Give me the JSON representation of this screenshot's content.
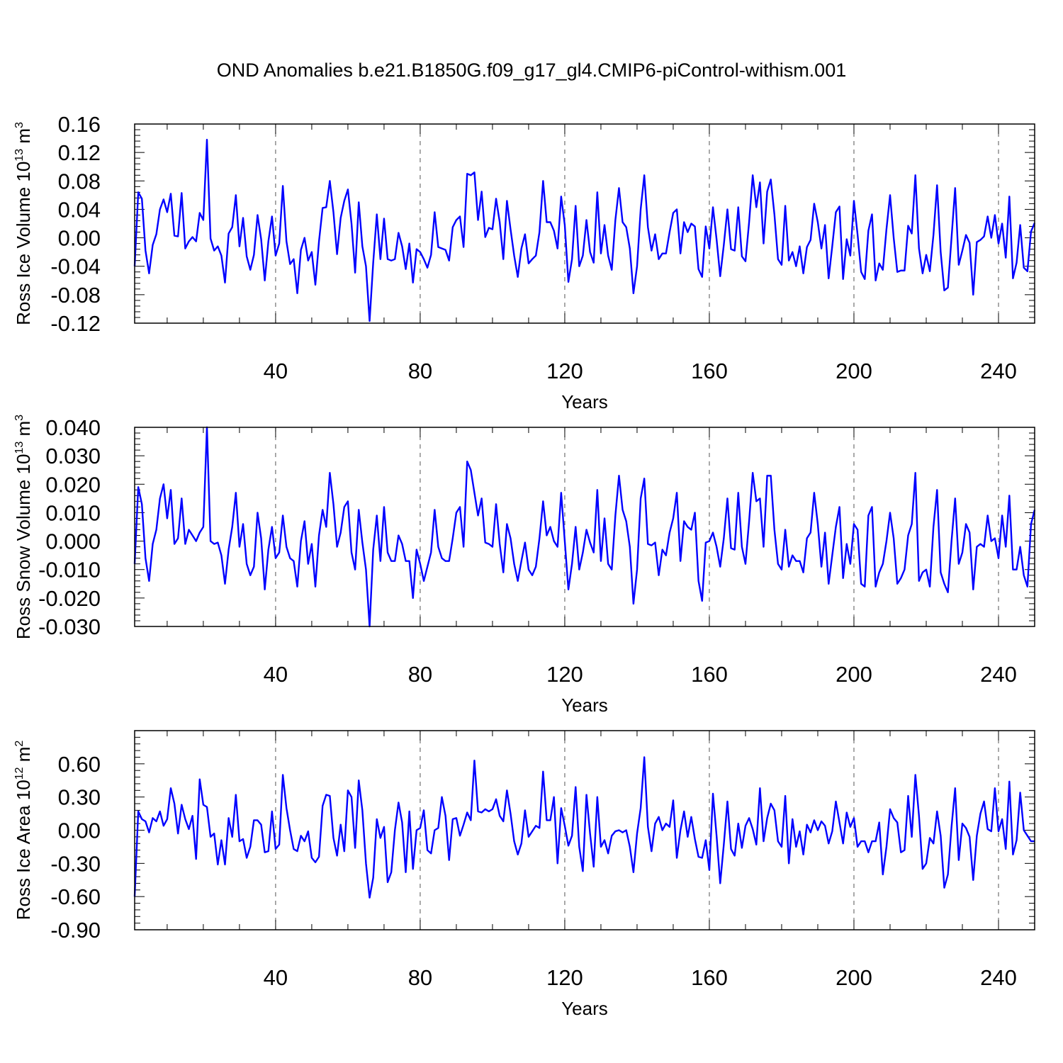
{
  "title": "OND Anomalies b.e21.B1850G.f09_g17_gl4.CMIP6-piControl-withism.001",
  "colors": {
    "line": "#0000ff",
    "axis": "#000000",
    "grid": "#555555"
  },
  "chart_data": [
    {
      "type": "line",
      "xlabel": "Years",
      "ylabel": "Ross Ice Volume 10",
      "ylabel_exp": "13",
      "ylabel_unit": "m",
      "ylabel_unit_exp": "3",
      "xlim": [
        1,
        250
      ],
      "ylim": [
        -0.12,
        0.16
      ],
      "x_ticks": [
        40,
        80,
        120,
        160,
        200,
        240
      ],
      "x_tick_labels": [
        "40",
        "80",
        "120",
        "160",
        "200",
        "240"
      ],
      "y_ticks": [
        -0.12,
        -0.08,
        -0.04,
        0.0,
        0.04,
        0.08,
        0.12,
        0.16
      ],
      "y_tick_labels": [
        "-0.12",
        "-0.08",
        "-0.04",
        "0.00",
        "0.04",
        "0.08",
        "0.12",
        "0.16"
      ],
      "series": [
        {
          "name": "Ross Ice Volume",
          "x_start": 1,
          "values": [
            -0.04,
            0.064,
            0.055,
            -0.018,
            -0.05,
            -0.01,
            0.005,
            0.04,
            0.054,
            0.036,
            0.062,
            0.003,
            0.002,
            0.063,
            -0.015,
            -0.005,
            0.001,
            -0.005,
            0.035,
            0.025,
            0.138,
            -0.001,
            -0.018,
            -0.012,
            -0.025,
            -0.063,
            0.006,
            0.015,
            0.06,
            -0.012,
            0.028,
            -0.026,
            -0.045,
            -0.024,
            0.032,
            -0.002,
            -0.06,
            -0.005,
            0.03,
            -0.025,
            -0.008,
            0.073,
            -0.005,
            -0.037,
            -0.03,
            -0.078,
            -0.017,
            0.0,
            -0.032,
            -0.02,
            -0.066,
            -0.005,
            0.042,
            0.043,
            0.08,
            0.036,
            -0.023,
            0.028,
            0.052,
            0.068,
            0.02,
            -0.049,
            0.05,
            -0.012,
            -0.04,
            -0.117,
            -0.035,
            0.033,
            -0.03,
            0.027,
            -0.03,
            -0.032,
            -0.03,
            0.007,
            -0.012,
            -0.044,
            -0.008,
            -0.063,
            -0.016,
            -0.02,
            -0.03,
            -0.042,
            -0.024,
            0.036,
            -0.013,
            -0.015,
            -0.017,
            -0.032,
            0.015,
            0.025,
            0.03,
            -0.013,
            0.09,
            0.088,
            0.092,
            0.025,
            0.065,
            0.001,
            0.014,
            0.012,
            0.055,
            0.022,
            -0.03,
            0.052,
            0.012,
            -0.025,
            -0.055,
            -0.015,
            0.005,
            -0.036,
            -0.03,
            -0.025,
            0.008,
            0.08,
            0.022,
            0.022,
            0.01,
            -0.015,
            0.058,
            0.018,
            -0.062,
            -0.03,
            0.045,
            -0.04,
            -0.025,
            0.025,
            -0.02,
            -0.035,
            0.064,
            -0.022,
            0.018,
            -0.025,
            -0.045,
            0.025,
            0.07,
            0.022,
            0.015,
            -0.015,
            -0.078,
            -0.04,
            0.04,
            0.088,
            0.015,
            -0.018,
            0.005,
            -0.03,
            -0.022,
            -0.022,
            0.008,
            0.035,
            0.04,
            -0.022,
            0.022,
            0.008,
            0.02,
            0.016,
            -0.044,
            -0.055,
            0.016,
            -0.015,
            0.043,
            -0.002,
            -0.054,
            -0.01,
            0.04,
            -0.016,
            -0.018,
            0.043,
            -0.026,
            -0.033,
            0.022,
            0.088,
            0.043,
            0.078,
            -0.008,
            0.065,
            0.082,
            0.033,
            -0.03,
            -0.038,
            0.045,
            -0.032,
            -0.02,
            -0.04,
            -0.012,
            -0.05,
            -0.013,
            -0.003,
            0.048,
            0.022,
            -0.015,
            0.018,
            -0.057,
            -0.012,
            0.036,
            0.044,
            -0.058,
            -0.002,
            -0.025,
            0.052,
            0.005,
            -0.048,
            -0.058,
            0.01,
            0.033,
            -0.06,
            -0.036,
            -0.045,
            0.012,
            0.06,
            0.0,
            -0.048,
            -0.046,
            -0.046,
            0.017,
            0.006,
            0.088,
            -0.015,
            -0.05,
            -0.024,
            -0.047,
            0.004,
            0.074,
            -0.02,
            -0.074,
            -0.07,
            0.0,
            0.07,
            -0.038,
            -0.018,
            0.004,
            -0.007,
            -0.08,
            -0.006,
            -0.003,
            0.002,
            0.03,
            0.0,
            0.032,
            -0.008,
            0.02,
            -0.028,
            0.058,
            -0.057,
            -0.035,
            0.018,
            -0.042,
            -0.047,
            0.009,
            0.021
          ]
        }
      ]
    },
    {
      "type": "line",
      "xlabel": "Years",
      "ylabel": "Ross Snow Volume 10",
      "ylabel_exp": "13",
      "ylabel_unit": "m",
      "ylabel_unit_exp": "3",
      "xlim": [
        1,
        250
      ],
      "ylim": [
        -0.03,
        0.04
      ],
      "x_ticks": [
        40,
        80,
        120,
        160,
        200,
        240
      ],
      "x_tick_labels": [
        "40",
        "80",
        "120",
        "160",
        "200",
        "240"
      ],
      "y_ticks": [
        -0.03,
        -0.02,
        -0.01,
        0.0,
        0.01,
        0.02,
        0.03,
        0.04
      ],
      "y_tick_labels": [
        "-0.030",
        "-0.020",
        "-0.010",
        "0.000",
        "0.010",
        "0.020",
        "0.030",
        "0.040"
      ],
      "series": [
        {
          "name": "Ross Snow Volume",
          "x_start": 1,
          "values": [
            -0.008,
            0.019,
            0.013,
            -0.006,
            -0.014,
            -0.001,
            0.004,
            0.015,
            0.02,
            0.008,
            0.018,
            -0.001,
            0.001,
            0.015,
            -0.001,
            0.004,
            0.002,
            0.0,
            0.003,
            0.005,
            0.04,
            0.0,
            -0.001,
            -0.0005,
            -0.005,
            -0.015,
            -0.003,
            0.005,
            0.017,
            -0.002,
            0.006,
            -0.008,
            -0.012,
            -0.009,
            0.01,
            0.001,
            -0.017,
            -0.003,
            0.005,
            -0.006,
            -0.004,
            0.009,
            -0.002,
            -0.006,
            -0.007,
            -0.016,
            0.0,
            0.007,
            -0.008,
            -0.001,
            -0.016,
            0.002,
            0.011,
            0.005,
            0.024,
            0.013,
            -0.002,
            0.003,
            0.012,
            0.014,
            -0.004,
            -0.01,
            0.011,
            -0.0005,
            -0.01,
            -0.03,
            -0.003,
            0.009,
            -0.007,
            0.012,
            -0.004,
            -0.007,
            -0.007,
            0.002,
            -0.001,
            -0.007,
            -0.007,
            -0.02,
            -0.003,
            -0.008,
            -0.014,
            -0.009,
            -0.004,
            0.011,
            -0.002,
            -0.006,
            -0.007,
            -0.007,
            0.001,
            0.01,
            0.012,
            -0.002,
            0.028,
            0.025,
            0.017,
            0.009,
            0.015,
            -0.0005,
            -0.001,
            -0.002,
            0.013,
            -0.001,
            -0.011,
            0.006,
            0.001,
            -0.008,
            -0.014,
            -0.007,
            -0.0005,
            -0.01,
            -0.012,
            -0.009,
            0.001,
            0.014,
            0.002,
            0.005,
            0.0,
            -0.002,
            0.017,
            0.0,
            -0.017,
            -0.008,
            0.005,
            -0.01,
            -0.004,
            0.004,
            -0.0005,
            -0.004,
            0.018,
            -0.007,
            0.008,
            -0.008,
            -0.01,
            0.009,
            0.023,
            0.011,
            0.007,
            -0.002,
            -0.022,
            -0.01,
            0.015,
            0.022,
            -0.001,
            -0.0015,
            -0.0005,
            -0.012,
            -0.003,
            -0.005,
            0.003,
            0.008,
            0.017,
            -0.007,
            0.007,
            0.005,
            0.004,
            0.01,
            -0.014,
            -0.021,
            -0.0005,
            0.0,
            0.003,
            -0.002,
            -0.009,
            0.001,
            0.015,
            -0.0025,
            -0.003,
            0.017,
            -0.002,
            -0.008,
            0.007,
            0.024,
            0.014,
            0.015,
            -0.002,
            0.023,
            0.023,
            0.004,
            -0.008,
            -0.01,
            0.004,
            -0.009,
            -0.005,
            -0.007,
            -0.007,
            -0.011,
            0.001,
            0.003,
            0.017,
            0.006,
            -0.009,
            0.003,
            -0.015,
            -0.005,
            0.005,
            0.012,
            -0.013,
            -0.001,
            -0.008,
            0.006,
            0.004,
            -0.015,
            -0.016,
            0.009,
            0.012,
            -0.016,
            -0.011,
            -0.008,
            0.0,
            0.01,
            0.001,
            -0.015,
            -0.013,
            -0.01,
            0.002,
            0.006,
            0.024,
            -0.014,
            -0.011,
            -0.01,
            -0.016,
            0.005,
            0.018,
            -0.011,
            -0.015,
            -0.018,
            0.0,
            0.015,
            -0.008,
            -0.004,
            0.006,
            0.003,
            -0.017,
            -0.002,
            -0.001,
            -0.002,
            0.009,
            0.0,
            0.001,
            -0.006,
            0.009,
            -0.002,
            0.016,
            -0.01,
            -0.01,
            -0.002,
            -0.012,
            -0.016,
            0.006,
            0.011
          ]
        }
      ]
    },
    {
      "type": "line",
      "xlabel": "Years",
      "ylabel": "Ross Ice Area 10",
      "ylabel_exp": "12",
      "ylabel_unit": "m",
      "ylabel_unit_exp": "2",
      "xlim": [
        1,
        250
      ],
      "ylim": [
        -0.9,
        0.9
      ],
      "x_ticks": [
        40,
        80,
        120,
        160,
        200,
        240
      ],
      "x_tick_labels": [
        "40",
        "80",
        "120",
        "160",
        "200",
        "240"
      ],
      "y_ticks": [
        -0.9,
        -0.6,
        -0.3,
        0.0,
        0.3,
        0.6
      ],
      "y_tick_labels": [
        "-0.90",
        "-0.60",
        "-0.30",
        "0.00",
        "0.30",
        "0.60"
      ],
      "series": [
        {
          "name": "Ross Ice Area",
          "x_start": 1,
          "values": [
            -0.6,
            0.17,
            0.1,
            0.08,
            -0.02,
            0.11,
            0.08,
            0.17,
            0.04,
            0.1,
            0.38,
            0.24,
            -0.03,
            0.23,
            0.1,
            0.01,
            0.13,
            -0.26,
            0.46,
            0.23,
            0.21,
            -0.06,
            -0.03,
            -0.31,
            -0.09,
            -0.31,
            0.11,
            -0.06,
            0.32,
            -0.1,
            -0.08,
            -0.25,
            -0.15,
            0.09,
            0.09,
            0.05,
            -0.2,
            -0.19,
            0.17,
            -0.17,
            -0.13,
            0.5,
            0.2,
            0.0,
            -0.17,
            -0.19,
            -0.05,
            -0.1,
            -0.01,
            -0.25,
            -0.29,
            -0.24,
            0.22,
            0.32,
            0.31,
            -0.07,
            -0.23,
            0.05,
            -0.19,
            0.36,
            0.3,
            -0.16,
            0.45,
            0.18,
            -0.3,
            -0.61,
            -0.43,
            0.1,
            -0.07,
            0.03,
            -0.47,
            -0.38,
            0.0,
            0.25,
            0.07,
            -0.38,
            0.17,
            -0.35,
            0.0,
            0.02,
            0.18,
            -0.18,
            -0.21,
            0.0,
            0.02,
            0.3,
            0.13,
            -0.27,
            0.1,
            0.11,
            -0.05,
            0.05,
            0.16,
            0.09,
            0.63,
            0.17,
            0.16,
            0.19,
            0.17,
            0.19,
            0.28,
            0.13,
            0.08,
            0.36,
            0.15,
            -0.1,
            -0.22,
            -0.12,
            0.18,
            -0.06,
            -0.01,
            0.04,
            0.02,
            0.53,
            0.09,
            0.09,
            0.3,
            -0.3,
            0.2,
            0.04,
            -0.14,
            -0.05,
            0.39,
            -0.15,
            -0.37,
            0.32,
            -0.03,
            -0.33,
            0.3,
            -0.15,
            -0.09,
            -0.21,
            -0.05,
            -0.01,
            0.0,
            -0.02,
            0.0,
            -0.15,
            -0.38,
            -0.03,
            0.2,
            0.66,
            0.03,
            -0.19,
            0.06,
            0.12,
            0.0,
            0.06,
            0.03,
            0.27,
            -0.25,
            0.0,
            0.17,
            -0.06,
            0.12,
            -0.08,
            -0.24,
            -0.25,
            -0.09,
            -0.36,
            0.33,
            -0.05,
            -0.48,
            -0.13,
            0.26,
            -0.17,
            -0.23,
            0.06,
            -0.16,
            0.04,
            0.11,
            0.01,
            -0.13,
            0.38,
            -0.1,
            0.11,
            0.24,
            0.18,
            -0.1,
            -0.15,
            0.31,
            -0.3,
            0.1,
            -0.15,
            -0.01,
            -0.22,
            0.05,
            -0.02,
            0.09,
            0.0,
            0.08,
            0.04,
            -0.12,
            -0.01,
            0.26,
            0.07,
            -0.12,
            0.16,
            0.03,
            0.11,
            -0.15,
            -0.1,
            -0.1,
            -0.2,
            -0.1,
            -0.1,
            0.07,
            -0.4,
            -0.15,
            0.19,
            0.11,
            0.07,
            -0.2,
            -0.18,
            0.31,
            -0.06,
            0.5,
            0.13,
            -0.35,
            -0.3,
            -0.07,
            -0.12,
            0.17,
            -0.05,
            -0.52,
            -0.4,
            0.03,
            0.38,
            -0.27,
            0.06,
            0.02,
            -0.06,
            -0.45,
            -0.05,
            0.15,
            0.26,
            0.01,
            -0.01,
            0.38,
            -0.01,
            0.1,
            -0.17,
            0.44,
            -0.22,
            -0.09,
            0.34,
            0.0,
            -0.05,
            -0.1,
            -0.1
          ]
        }
      ]
    }
  ]
}
